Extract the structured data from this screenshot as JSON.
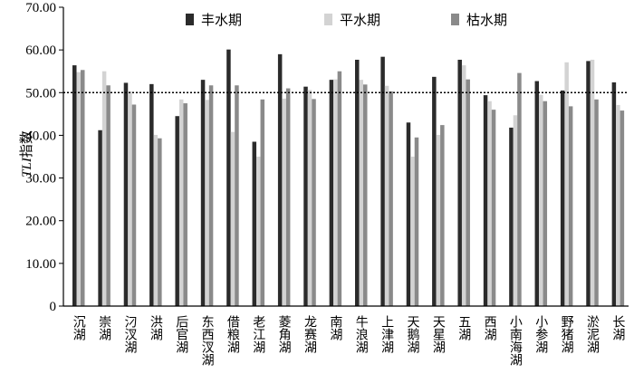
{
  "chart_data": {
    "type": "bar",
    "ylabel_italic": "TLI",
    "ylabel_rest": "指数",
    "ylim": [
      0,
      70
    ],
    "yticks": [
      "0",
      "10.00",
      "20.00",
      "30.00",
      "40.00",
      "50.00",
      "60.00",
      "70.00"
    ],
    "ytick_values": [
      0,
      10,
      20,
      30,
      40,
      50,
      60,
      70
    ],
    "reference_line": 50,
    "legend_position": "top-right",
    "categories": [
      "沉湖",
      "崇湖",
      "汈汊湖",
      "洪湖",
      "后官湖",
      "东西汊湖",
      "借粮湖",
      "老江湖",
      "菱角湖",
      "龙赛湖",
      "南湖",
      "牛浪湖",
      "上津湖",
      "天鹅湖",
      "天星湖",
      "五湖",
      "西湖",
      "小南海湖",
      "小参湖",
      "野猪湖",
      "淤泥湖",
      "长湖"
    ],
    "series": [
      {
        "name": "丰水期",
        "color": "#2b2b2b",
        "values": [
          56.4,
          41.2,
          52.3,
          52.0,
          44.5,
          53.0,
          60.1,
          38.5,
          59.0,
          51.4,
          53.0,
          57.7,
          58.4,
          43.0,
          53.7,
          57.7,
          49.4,
          41.8,
          52.7,
          50.5,
          57.4,
          52.4
        ]
      },
      {
        "name": "平水期",
        "color": "#d3d3d3",
        "values": [
          54.8,
          55.0,
          50.3,
          40.1,
          48.4,
          48.3,
          40.8,
          35.0,
          48.6,
          50.6,
          53.1,
          53.0,
          51.6,
          35.0,
          40.1,
          56.4,
          48.0,
          44.7,
          49.5,
          57.1,
          57.7,
          47.1
        ]
      },
      {
        "name": "枯水期",
        "color": "#8a8a8a",
        "values": [
          55.3,
          51.7,
          47.2,
          39.3,
          47.5,
          51.7,
          51.7,
          48.4,
          51.0,
          48.5,
          55.0,
          51.9,
          50.3,
          39.5,
          42.4,
          53.1,
          46.0,
          54.6,
          48.0,
          46.8,
          48.4,
          45.8
        ]
      }
    ]
  }
}
